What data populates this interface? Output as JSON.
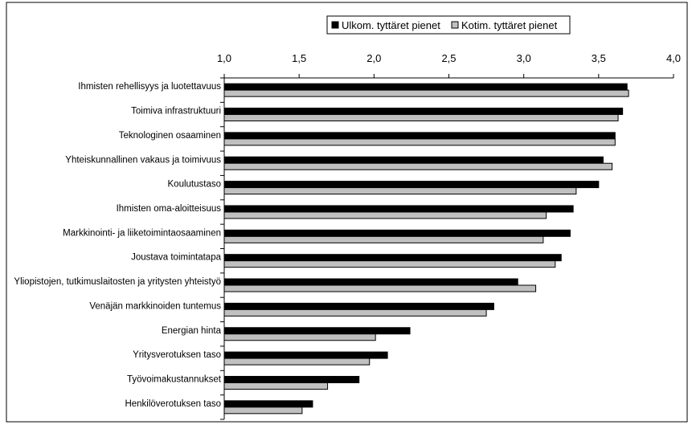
{
  "chart_data": {
    "type": "bar",
    "orientation": "horizontal",
    "title": "",
    "xlabel": "",
    "ylabel": "",
    "xlim": [
      1.0,
      4.0
    ],
    "ticks": [
      "1,0",
      "1,5",
      "2,0",
      "2,5",
      "3,0",
      "3,5",
      "4,0"
    ],
    "tick_values": [
      1.0,
      1.5,
      2.0,
      2.5,
      3.0,
      3.5,
      4.0
    ],
    "axis_position": "top",
    "grid": false,
    "legend_position": "top",
    "categories": [
      "Ihmisten rehellisyys ja luotettavuus",
      "Toimiva infrastruktuuri",
      "Teknologinen osaaminen",
      "Yhteiskunnallinen vakaus ja toimivuus",
      "Koulutustaso",
      "Ihmisten oma-aloitteisuus",
      "Markkinointi- ja liiketoimintaosaaminen",
      "Joustava toimintatapa",
      "Yliopistojen, tutkimuslaitosten ja yritysten yhteistyö",
      "Venäjän markkinoiden tuntemus",
      "Energian hinta",
      "Yritysverotuksen taso",
      "Työvoimakustannukset",
      "Henkilöverotuksen taso"
    ],
    "series": [
      {
        "name": "Ulkom. tyttäret pienet",
        "color": "#000000",
        "values": [
          3.69,
          3.66,
          3.61,
          3.53,
          3.5,
          3.33,
          3.31,
          3.25,
          2.96,
          2.8,
          2.24,
          2.09,
          1.9,
          1.59
        ]
      },
      {
        "name": "Kotim. tyttäret pienet",
        "color": "#c0c0c0",
        "values": [
          3.7,
          3.63,
          3.61,
          3.59,
          3.35,
          3.15,
          3.13,
          3.21,
          3.08,
          2.75,
          2.01,
          1.97,
          1.69,
          1.52
        ]
      }
    ]
  }
}
